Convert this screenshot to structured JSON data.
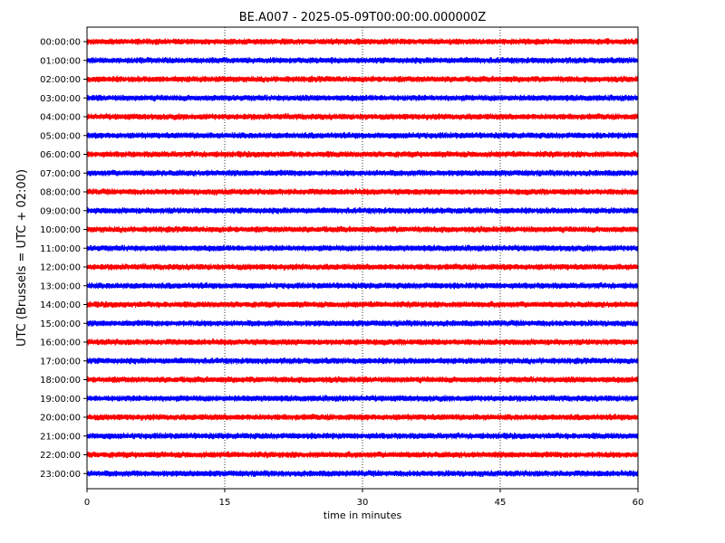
{
  "chart_data": {
    "type": "line",
    "title": "BE.A007 - 2025-05-09T00:00:00.000000Z",
    "xlabel": "time in minutes",
    "ylabel": "UTC (Brussels = UTC + 02:00)",
    "xlim": [
      0,
      60
    ],
    "x_ticks": [
      "0",
      "15",
      "30",
      "45",
      "60"
    ],
    "grid": "vertical-dotted",
    "colors": [
      "#ff0000",
      "#0000ff"
    ],
    "series": [
      {
        "label": "00:00:00",
        "color": "#ff0000"
      },
      {
        "label": "01:00:00",
        "color": "#0000ff"
      },
      {
        "label": "02:00:00",
        "color": "#ff0000"
      },
      {
        "label": "03:00:00",
        "color": "#0000ff"
      },
      {
        "label": "04:00:00",
        "color": "#ff0000"
      },
      {
        "label": "05:00:00",
        "color": "#0000ff"
      },
      {
        "label": "06:00:00",
        "color": "#ff0000"
      },
      {
        "label": "07:00:00",
        "color": "#0000ff"
      },
      {
        "label": "08:00:00",
        "color": "#ff0000"
      },
      {
        "label": "09:00:00",
        "color": "#0000ff"
      },
      {
        "label": "10:00:00",
        "color": "#ff0000"
      },
      {
        "label": "11:00:00",
        "color": "#0000ff"
      },
      {
        "label": "12:00:00",
        "color": "#ff0000"
      },
      {
        "label": "13:00:00",
        "color": "#0000ff"
      },
      {
        "label": "14:00:00",
        "color": "#ff0000"
      },
      {
        "label": "15:00:00",
        "color": "#0000ff"
      },
      {
        "label": "16:00:00",
        "color": "#ff0000"
      },
      {
        "label": "17:00:00",
        "color": "#0000ff"
      },
      {
        "label": "18:00:00",
        "color": "#ff0000"
      },
      {
        "label": "19:00:00",
        "color": "#0000ff"
      },
      {
        "label": "20:00:00",
        "color": "#ff0000"
      },
      {
        "label": "21:00:00",
        "color": "#0000ff"
      },
      {
        "label": "22:00:00",
        "color": "#ff0000"
      },
      {
        "label": "23:00:00",
        "color": "#0000ff"
      }
    ]
  }
}
